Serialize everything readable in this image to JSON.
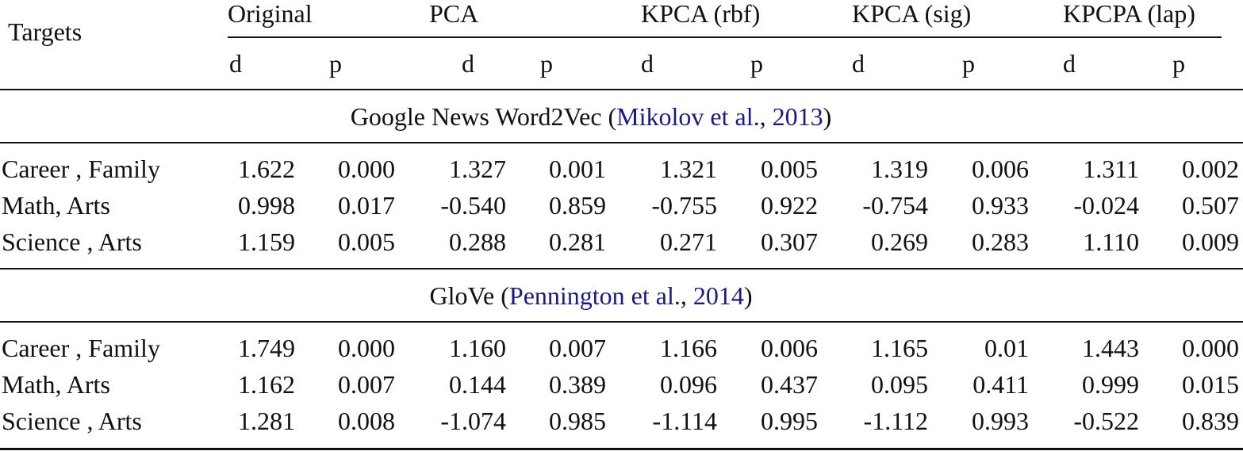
{
  "table": {
    "header": "Targets",
    "columns": [
      {
        "name": "Original",
        "sub": [
          "d",
          "p"
        ]
      },
      {
        "name": "PCA",
        "sub": [
          "d",
          "p"
        ]
      },
      {
        "name": "KPCA (rbf)",
        "sub": [
          "d",
          "p"
        ]
      },
      {
        "name": "KPCA (sig)",
        "sub": [
          "d",
          "p"
        ]
      },
      {
        "name": "KPCPA (lap)",
        "sub": [
          "d",
          "p"
        ]
      }
    ],
    "sections": [
      {
        "title_parts": [
          {
            "text": "Google News Word2Vec (",
            "link": false
          },
          {
            "text": "Mikolov et al.",
            "link": true
          },
          {
            "text": ", ",
            "link": false
          },
          {
            "text": "2013",
            "link": true
          },
          {
            "text": ")",
            "link": false
          }
        ],
        "rows": [
          {
            "label": "Career , Family",
            "values": [
              "1.622",
              "0.000",
              "1.327",
              "0.001",
              "1.321",
              "0.005",
              "1.319",
              "0.006",
              "1.311",
              "0.002"
            ]
          },
          {
            "label": "Math, Arts",
            "values": [
              "0.998",
              "0.017",
              "-0.540",
              "0.859",
              "-0.755",
              "0.922",
              "-0.754",
              "0.933",
              "-0.024",
              "0.507"
            ]
          },
          {
            "label": "Science , Arts",
            "values": [
              "1.159",
              "0.005",
              "0.288",
              "0.281",
              "0.271",
              "0.307",
              "0.269",
              "0.283",
              "1.110",
              "0.009"
            ]
          }
        ]
      },
      {
        "title_parts": [
          {
            "text": "GloVe (",
            "link": false
          },
          {
            "text": "Pennington et al.",
            "link": true
          },
          {
            "text": ", ",
            "link": false
          },
          {
            "text": "2014",
            "link": true
          },
          {
            "text": ")",
            "link": false
          }
        ],
        "rows": [
          {
            "label": "Career , Family",
            "values": [
              "1.749",
              "0.000",
              "1.160",
              "0.007",
              "1.166",
              "0.006",
              "1.165",
              "0.01",
              "1.443",
              "0.000"
            ]
          },
          {
            "label": "Math, Arts",
            "values": [
              "1.162",
              "0.007",
              "0.144",
              "0.389",
              "0.096",
              "0.437",
              "0.095",
              "0.411",
              "0.999",
              "0.015"
            ]
          },
          {
            "label": "Science , Arts",
            "values": [
              "1.281",
              "0.008",
              "-1.074",
              "0.985",
              "-1.114",
              "0.995",
              "-1.112",
              "0.993",
              "-0.522",
              "0.839"
            ]
          }
        ]
      }
    ]
  }
}
